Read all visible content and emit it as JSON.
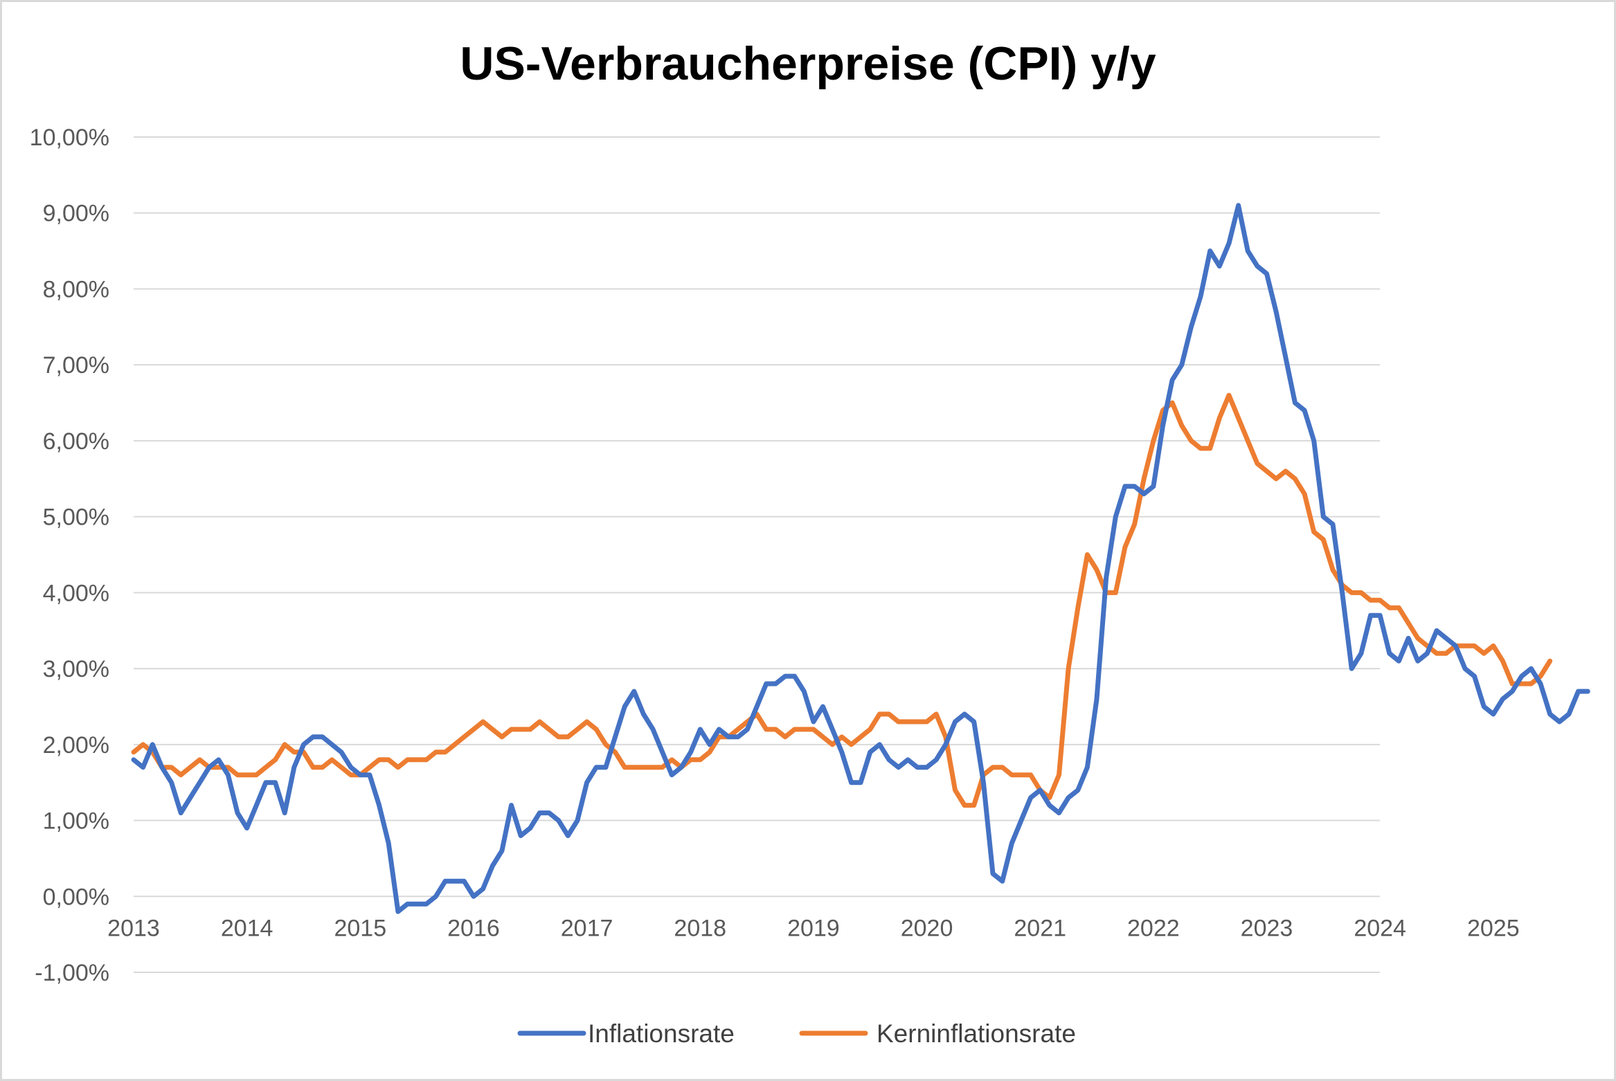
{
  "chart_data": {
    "type": "line",
    "title": "US-Verbraucherpreise (CPI) y/y",
    "xlabel": "",
    "ylabel": "",
    "ylim": [
      -1,
      10
    ],
    "y_ticks": [
      -1,
      0,
      1,
      2,
      3,
      4,
      5,
      6,
      7,
      8,
      9,
      10
    ],
    "y_tick_labels": [
      "-1,00%",
      "0,00%",
      "1,00%",
      "2,00%",
      "3,00%",
      "4,00%",
      "5,00%",
      "6,00%",
      "7,00%",
      "8,00%",
      "9,00%",
      "10,00%"
    ],
    "x_tick_labels": [
      "2013",
      "2014",
      "2015",
      "2016",
      "2017",
      "2018",
      "2019",
      "2020",
      "2021",
      "2022",
      "2023",
      "2024",
      "2025"
    ],
    "x_start": "2013-01",
    "grid": true,
    "legend_position": "bottom-center",
    "colors": {
      "inflation": "#4472C4",
      "core": "#ED7D31",
      "grid": "#d9d9d9"
    },
    "series": [
      {
        "name": "Inflationsrate",
        "color": "#4472C4",
        "values": [
          1.8,
          1.7,
          2.0,
          1.7,
          1.5,
          1.1,
          1.3,
          1.5,
          1.7,
          1.8,
          1.6,
          1.1,
          0.9,
          1.2,
          1.5,
          1.5,
          1.1,
          1.7,
          2.0,
          2.1,
          2.1,
          2.0,
          1.9,
          1.7,
          1.6,
          1.6,
          1.2,
          0.7,
          -0.2,
          -0.1,
          -0.1,
          -0.1,
          0.0,
          0.2,
          0.2,
          0.2,
          0.0,
          0.1,
          0.4,
          0.6,
          1.2,
          0.8,
          0.9,
          1.1,
          1.1,
          1.0,
          0.8,
          1.0,
          1.5,
          1.7,
          1.7,
          2.1,
          2.5,
          2.7,
          2.4,
          2.2,
          1.9,
          1.6,
          1.7,
          1.9,
          2.2,
          2.0,
          2.2,
          2.1,
          2.1,
          2.2,
          2.5,
          2.8,
          2.8,
          2.9,
          2.9,
          2.7,
          2.3,
          2.5,
          2.2,
          1.9,
          1.5,
          1.5,
          1.9,
          2.0,
          1.8,
          1.7,
          1.8,
          1.7,
          1.7,
          1.8,
          2.0,
          2.3,
          2.4,
          2.3,
          1.5,
          0.3,
          0.2,
          0.7,
          1.0,
          1.3,
          1.4,
          1.2,
          1.1,
          1.3,
          1.4,
          1.7,
          2.6,
          4.2,
          5.0,
          5.4,
          5.4,
          5.3,
          5.4,
          6.2,
          6.8,
          7.0,
          7.5,
          7.9,
          8.5,
          8.3,
          8.6,
          9.1,
          8.5,
          8.3,
          8.2,
          7.7,
          7.1,
          6.5,
          6.4,
          6.0,
          5.0,
          4.9,
          4.0,
          3.0,
          3.2,
          3.7,
          3.7,
          3.2,
          3.1,
          3.4,
          3.1,
          3.2,
          3.5,
          3.4,
          3.3,
          3.0,
          2.9,
          2.5,
          2.4,
          2.6,
          2.7,
          2.9,
          3.0,
          2.8,
          2.4,
          2.3,
          2.4,
          2.7,
          2.7
        ]
      },
      {
        "name": "Kerninflationsrate",
        "color": "#ED7D31",
        "values": [
          1.9,
          2.0,
          1.9,
          1.7,
          1.7,
          1.6,
          1.7,
          1.8,
          1.7,
          1.7,
          1.7,
          1.6,
          1.6,
          1.6,
          1.7,
          1.8,
          2.0,
          1.9,
          1.9,
          1.7,
          1.7,
          1.8,
          1.7,
          1.6,
          1.6,
          1.7,
          1.8,
          1.8,
          1.7,
          1.8,
          1.8,
          1.8,
          1.9,
          1.9,
          2.0,
          2.1,
          2.2,
          2.3,
          2.2,
          2.1,
          2.2,
          2.2,
          2.2,
          2.3,
          2.2,
          2.1,
          2.1,
          2.2,
          2.3,
          2.2,
          2.0,
          1.9,
          1.7,
          1.7,
          1.7,
          1.7,
          1.7,
          1.8,
          1.7,
          1.8,
          1.8,
          1.9,
          2.1,
          2.1,
          2.2,
          2.3,
          2.4,
          2.2,
          2.2,
          2.1,
          2.2,
          2.2,
          2.2,
          2.1,
          2.0,
          2.1,
          2.0,
          2.1,
          2.2,
          2.4,
          2.4,
          2.3,
          2.3,
          2.3,
          2.3,
          2.4,
          2.1,
          1.4,
          1.2,
          1.2,
          1.6,
          1.7,
          1.7,
          1.6,
          1.6,
          1.6,
          1.4,
          1.3,
          1.6,
          3.0,
          3.8,
          4.5,
          4.3,
          4.0,
          4.0,
          4.6,
          4.9,
          5.5,
          6.0,
          6.4,
          6.5,
          6.2,
          6.0,
          5.9,
          5.9,
          6.3,
          6.6,
          6.3,
          6.0,
          5.7,
          5.6,
          5.5,
          5.6,
          5.5,
          5.3,
          4.8,
          4.7,
          4.3,
          4.1,
          4.0,
          4.0,
          3.9,
          3.9,
          3.8,
          3.8,
          3.6,
          3.4,
          3.3,
          3.2,
          3.2,
          3.3,
          3.3,
          3.3,
          3.2,
          3.3,
          3.1,
          2.8,
          2.8,
          2.8,
          2.9,
          3.1
        ]
      }
    ]
  }
}
